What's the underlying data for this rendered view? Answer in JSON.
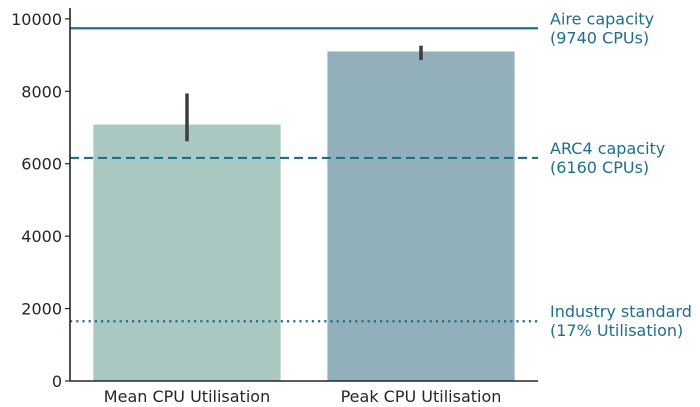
{
  "chart_data": {
    "type": "bar",
    "title": "",
    "xlabel": "",
    "ylabel": "",
    "categories": [
      "Mean CPU Utilisation",
      "Peak CPU Utilisation"
    ],
    "values": [
      7080,
      9100
    ],
    "error_bars": [
      [
        6620,
        7940
      ],
      [
        8860,
        9260
      ]
    ],
    "bar_colors": [
      "#a9c8c2",
      "#91b0bc"
    ],
    "ylim": [
      0,
      10300
    ],
    "yticks": [
      0,
      2000,
      4000,
      6000,
      8000,
      10000
    ],
    "grid": false,
    "reference_lines": [
      {
        "value": 9740,
        "style": "solid",
        "color": "#1f6f8b",
        "label_line1": "Aire capacity",
        "label_line2": "(9740 CPUs)"
      },
      {
        "value": 6160,
        "style": "dashed",
        "color": "#1f6f8b",
        "label_line1": "ARC4 capacity",
        "label_line2": "(6160 CPUs)"
      },
      {
        "value": 1650,
        "style": "dotted",
        "color": "#1f6f8b",
        "label_line1": "Industry standard",
        "label_line2": "(17% Utilisation)"
      }
    ]
  }
}
